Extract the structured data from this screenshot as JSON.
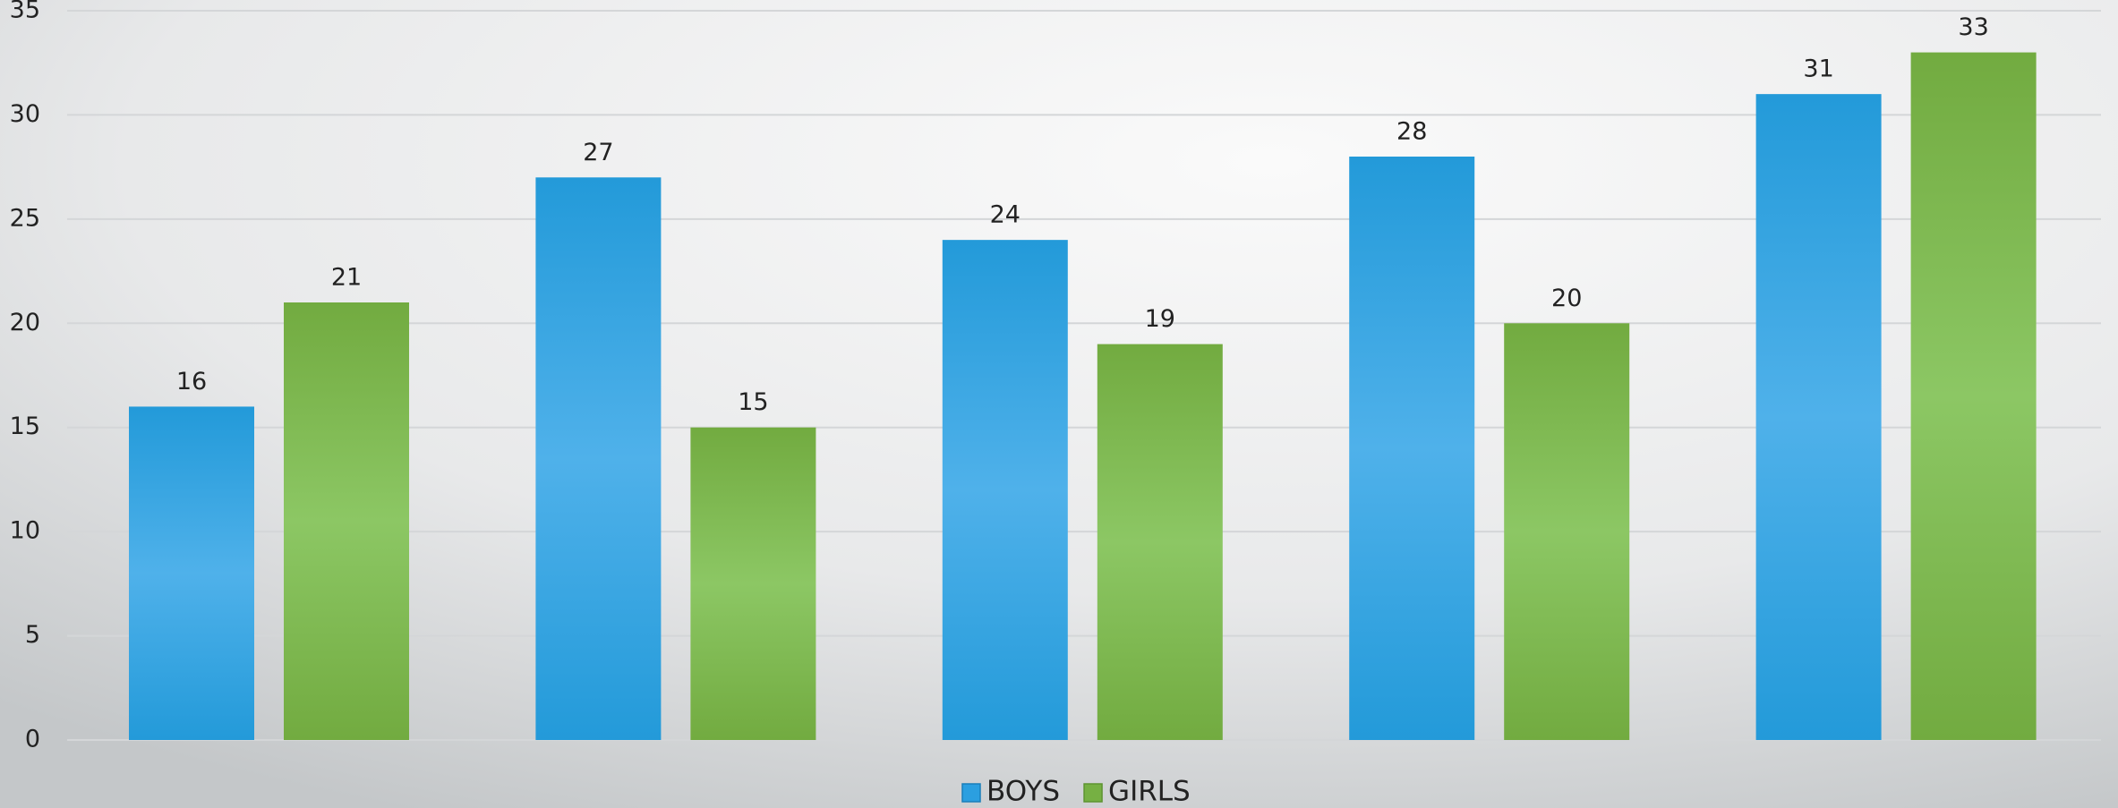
{
  "chart_data": {
    "type": "bar",
    "categories": [
      null,
      null,
      null,
      null,
      null
    ],
    "series": [
      {
        "name": "BOYS",
        "color": "#2b9fe0",
        "values": [
          16,
          27,
          24,
          28,
          31
        ]
      },
      {
        "name": "GIRLS",
        "color": "#76b043",
        "values": [
          21,
          15,
          19,
          20,
          33
        ]
      }
    ],
    "ylim": [
      0,
      35
    ],
    "yticks": [
      0,
      5,
      10,
      15,
      20,
      25,
      30,
      35
    ],
    "grid": true,
    "legend": "bottom"
  }
}
